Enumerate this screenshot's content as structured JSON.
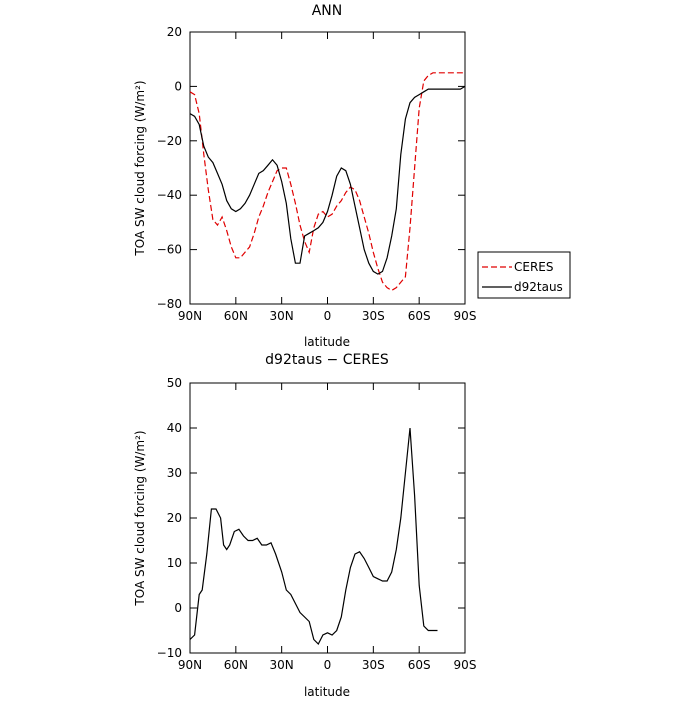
{
  "chart_data": [
    {
      "type": "line",
      "title": "ANN",
      "xlabel": "latitude",
      "ylabel": "TOA SW cloud forcing (W/m²)",
      "xlim": [
        90,
        -90
      ],
      "ylim": [
        -80,
        20
      ],
      "x_ticks": [
        90,
        60,
        30,
        0,
        -30,
        -60,
        -90
      ],
      "x_tick_labels": [
        "90N",
        "60N",
        "30N",
        "0",
        "30S",
        "60S",
        "90S"
      ],
      "y_ticks": [
        -80,
        -60,
        -40,
        -20,
        0,
        20
      ],
      "y_tick_labels": [
        "−80",
        "−60",
        "−40",
        "−20",
        "0",
        "20"
      ],
      "legend_placement": "right-outside",
      "series": [
        {
          "name": "CERES",
          "color": "#e00000",
          "dash": "dashed",
          "points": [
            [
              90,
              -2
            ],
            [
              87,
              -3
            ],
            [
              84,
              -10
            ],
            [
              81,
              -25
            ],
            [
              78,
              -38
            ],
            [
              75,
              -49
            ],
            [
              72,
              -51
            ],
            [
              69,
              -48
            ],
            [
              66,
              -53
            ],
            [
              63,
              -59
            ],
            [
              60,
              -63
            ],
            [
              57,
              -63
            ],
            [
              54,
              -61
            ],
            [
              51,
              -59
            ],
            [
              48,
              -54
            ],
            [
              45,
              -48
            ],
            [
              42,
              -44
            ],
            [
              39,
              -39
            ],
            [
              36,
              -35
            ],
            [
              33,
              -31
            ],
            [
              30,
              -30
            ],
            [
              27,
              -30
            ],
            [
              24,
              -36
            ],
            [
              21,
              -43
            ],
            [
              18,
              -51
            ],
            [
              15,
              -57
            ],
            [
              12,
              -61
            ],
            [
              9,
              -52
            ],
            [
              6,
              -47
            ],
            [
              3,
              -46
            ],
            [
              0,
              -48
            ],
            [
              -3,
              -47
            ],
            [
              -6,
              -44
            ],
            [
              -9,
              -42
            ],
            [
              -12,
              -39
            ],
            [
              -15,
              -37
            ],
            [
              -18,
              -38
            ],
            [
              -21,
              -42
            ],
            [
              -24,
              -48
            ],
            [
              -27,
              -54
            ],
            [
              -30,
              -61
            ],
            [
              -33,
              -67
            ],
            [
              -36,
              -72
            ],
            [
              -39,
              -74
            ],
            [
              -42,
              -75
            ],
            [
              -45,
              -74
            ],
            [
              -48,
              -72
            ],
            [
              -51,
              -70
            ],
            [
              -54,
              -52
            ],
            [
              -57,
              -30
            ],
            [
              -60,
              -8
            ],
            [
              -63,
              2
            ],
            [
              -66,
              4
            ],
            [
              -69,
              5
            ],
            [
              -72,
              5
            ],
            [
              -75,
              5
            ],
            [
              -78,
              5
            ],
            [
              -81,
              5
            ],
            [
              -84,
              5
            ],
            [
              -87,
              5
            ],
            [
              -90,
              5
            ]
          ]
        },
        {
          "name": "d92taus",
          "color": "#000000",
          "dash": "solid",
          "points": [
            [
              90,
              -10
            ],
            [
              87,
              -11
            ],
            [
              84,
              -14
            ],
            [
              81,
              -22
            ],
            [
              78,
              -26
            ],
            [
              75,
              -28
            ],
            [
              72,
              -32
            ],
            [
              69,
              -36
            ],
            [
              66,
              -42
            ],
            [
              63,
              -45
            ],
            [
              60,
              -46
            ],
            [
              57,
              -45
            ],
            [
              54,
              -43
            ],
            [
              51,
              -40
            ],
            [
              48,
              -36
            ],
            [
              45,
              -32
            ],
            [
              42,
              -31
            ],
            [
              39,
              -29
            ],
            [
              36,
              -27
            ],
            [
              33,
              -29
            ],
            [
              30,
              -35
            ],
            [
              27,
              -43
            ],
            [
              24,
              -56
            ],
            [
              21,
              -65
            ],
            [
              18,
              -65
            ],
            [
              15,
              -55
            ],
            [
              12,
              -54
            ],
            [
              9,
              -53
            ],
            [
              6,
              -52
            ],
            [
              3,
              -50
            ],
            [
              0,
              -46
            ],
            [
              -3,
              -40
            ],
            [
              -6,
              -33
            ],
            [
              -9,
              -30
            ],
            [
              -12,
              -31
            ],
            [
              -15,
              -36
            ],
            [
              -18,
              -44
            ],
            [
              -21,
              -52
            ],
            [
              -24,
              -60
            ],
            [
              -27,
              -65
            ],
            [
              -30,
              -68
            ],
            [
              -33,
              -69
            ],
            [
              -36,
              -68
            ],
            [
              -39,
              -63
            ],
            [
              -42,
              -55
            ],
            [
              -45,
              -45
            ],
            [
              -48,
              -25
            ],
            [
              -51,
              -12
            ],
            [
              -54,
              -6
            ],
            [
              -57,
              -4
            ],
            [
              -60,
              -3
            ],
            [
              -63,
              -2
            ],
            [
              -66,
              -1
            ],
            [
              -69,
              -1
            ],
            [
              -72,
              -1
            ],
            [
              -75,
              -1
            ],
            [
              -78,
              -1
            ],
            [
              -81,
              -1
            ],
            [
              -84,
              -1
            ],
            [
              -87,
              -1
            ],
            [
              -90,
              0
            ]
          ]
        }
      ]
    },
    {
      "type": "line",
      "title": "d92taus − CERES",
      "xlabel": "latitude",
      "ylabel": "TOA SW cloud forcing (W/m²)",
      "xlim": [
        90,
        -90
      ],
      "ylim": [
        -10,
        50
      ],
      "x_ticks": [
        90,
        60,
        30,
        0,
        -30,
        -60,
        -90
      ],
      "x_tick_labels": [
        "90N",
        "60N",
        "30N",
        "0",
        "30S",
        "60S",
        "90S"
      ],
      "y_ticks": [
        -10,
        0,
        10,
        20,
        30,
        40,
        50
      ],
      "y_tick_labels": [
        "−10",
        "0",
        "10",
        "20",
        "30",
        "40",
        "50"
      ],
      "series": [
        {
          "color": "#000000",
          "dash": "solid",
          "points": [
            [
              90,
              -7
            ],
            [
              87,
              -6
            ],
            [
              84,
              3
            ],
            [
              82,
              4
            ],
            [
              79,
              12
            ],
            [
              76,
              22
            ],
            [
              73,
              22
            ],
            [
              70,
              20
            ],
            [
              68,
              14
            ],
            [
              66,
              13
            ],
            [
              64,
              14
            ],
            [
              61,
              17
            ],
            [
              58,
              17.5
            ],
            [
              55,
              16
            ],
            [
              52,
              15
            ],
            [
              49,
              15
            ],
            [
              46,
              15.5
            ],
            [
              43,
              14
            ],
            [
              40,
              14
            ],
            [
              37,
              14.5
            ],
            [
              34,
              12
            ],
            [
              30,
              8
            ],
            [
              27,
              4
            ],
            [
              24,
              3
            ],
            [
              21,
              1
            ],
            [
              18,
              -1
            ],
            [
              15,
              -2
            ],
            [
              12,
              -3
            ],
            [
              9,
              -7
            ],
            [
              6,
              -8
            ],
            [
              3,
              -6
            ],
            [
              0,
              -5.5
            ],
            [
              -3,
              -6
            ],
            [
              -6,
              -5
            ],
            [
              -9,
              -2
            ],
            [
              -12,
              4
            ],
            [
              -15,
              9
            ],
            [
              -18,
              12
            ],
            [
              -21,
              12.5
            ],
            [
              -24,
              11
            ],
            [
              -27,
              9
            ],
            [
              -30,
              7
            ],
            [
              -33,
              6.5
            ],
            [
              -36,
              6
            ],
            [
              -39,
              6
            ],
            [
              -42,
              8
            ],
            [
              -45,
              13
            ],
            [
              -48,
              20
            ],
            [
              -51,
              30
            ],
            [
              -54,
              40
            ],
            [
              -57,
              25
            ],
            [
              -60,
              5
            ],
            [
              -63,
              -4
            ],
            [
              -66,
              -5
            ],
            [
              -69,
              -5
            ],
            [
              -72,
              -5
            ]
          ]
        }
      ]
    }
  ]
}
